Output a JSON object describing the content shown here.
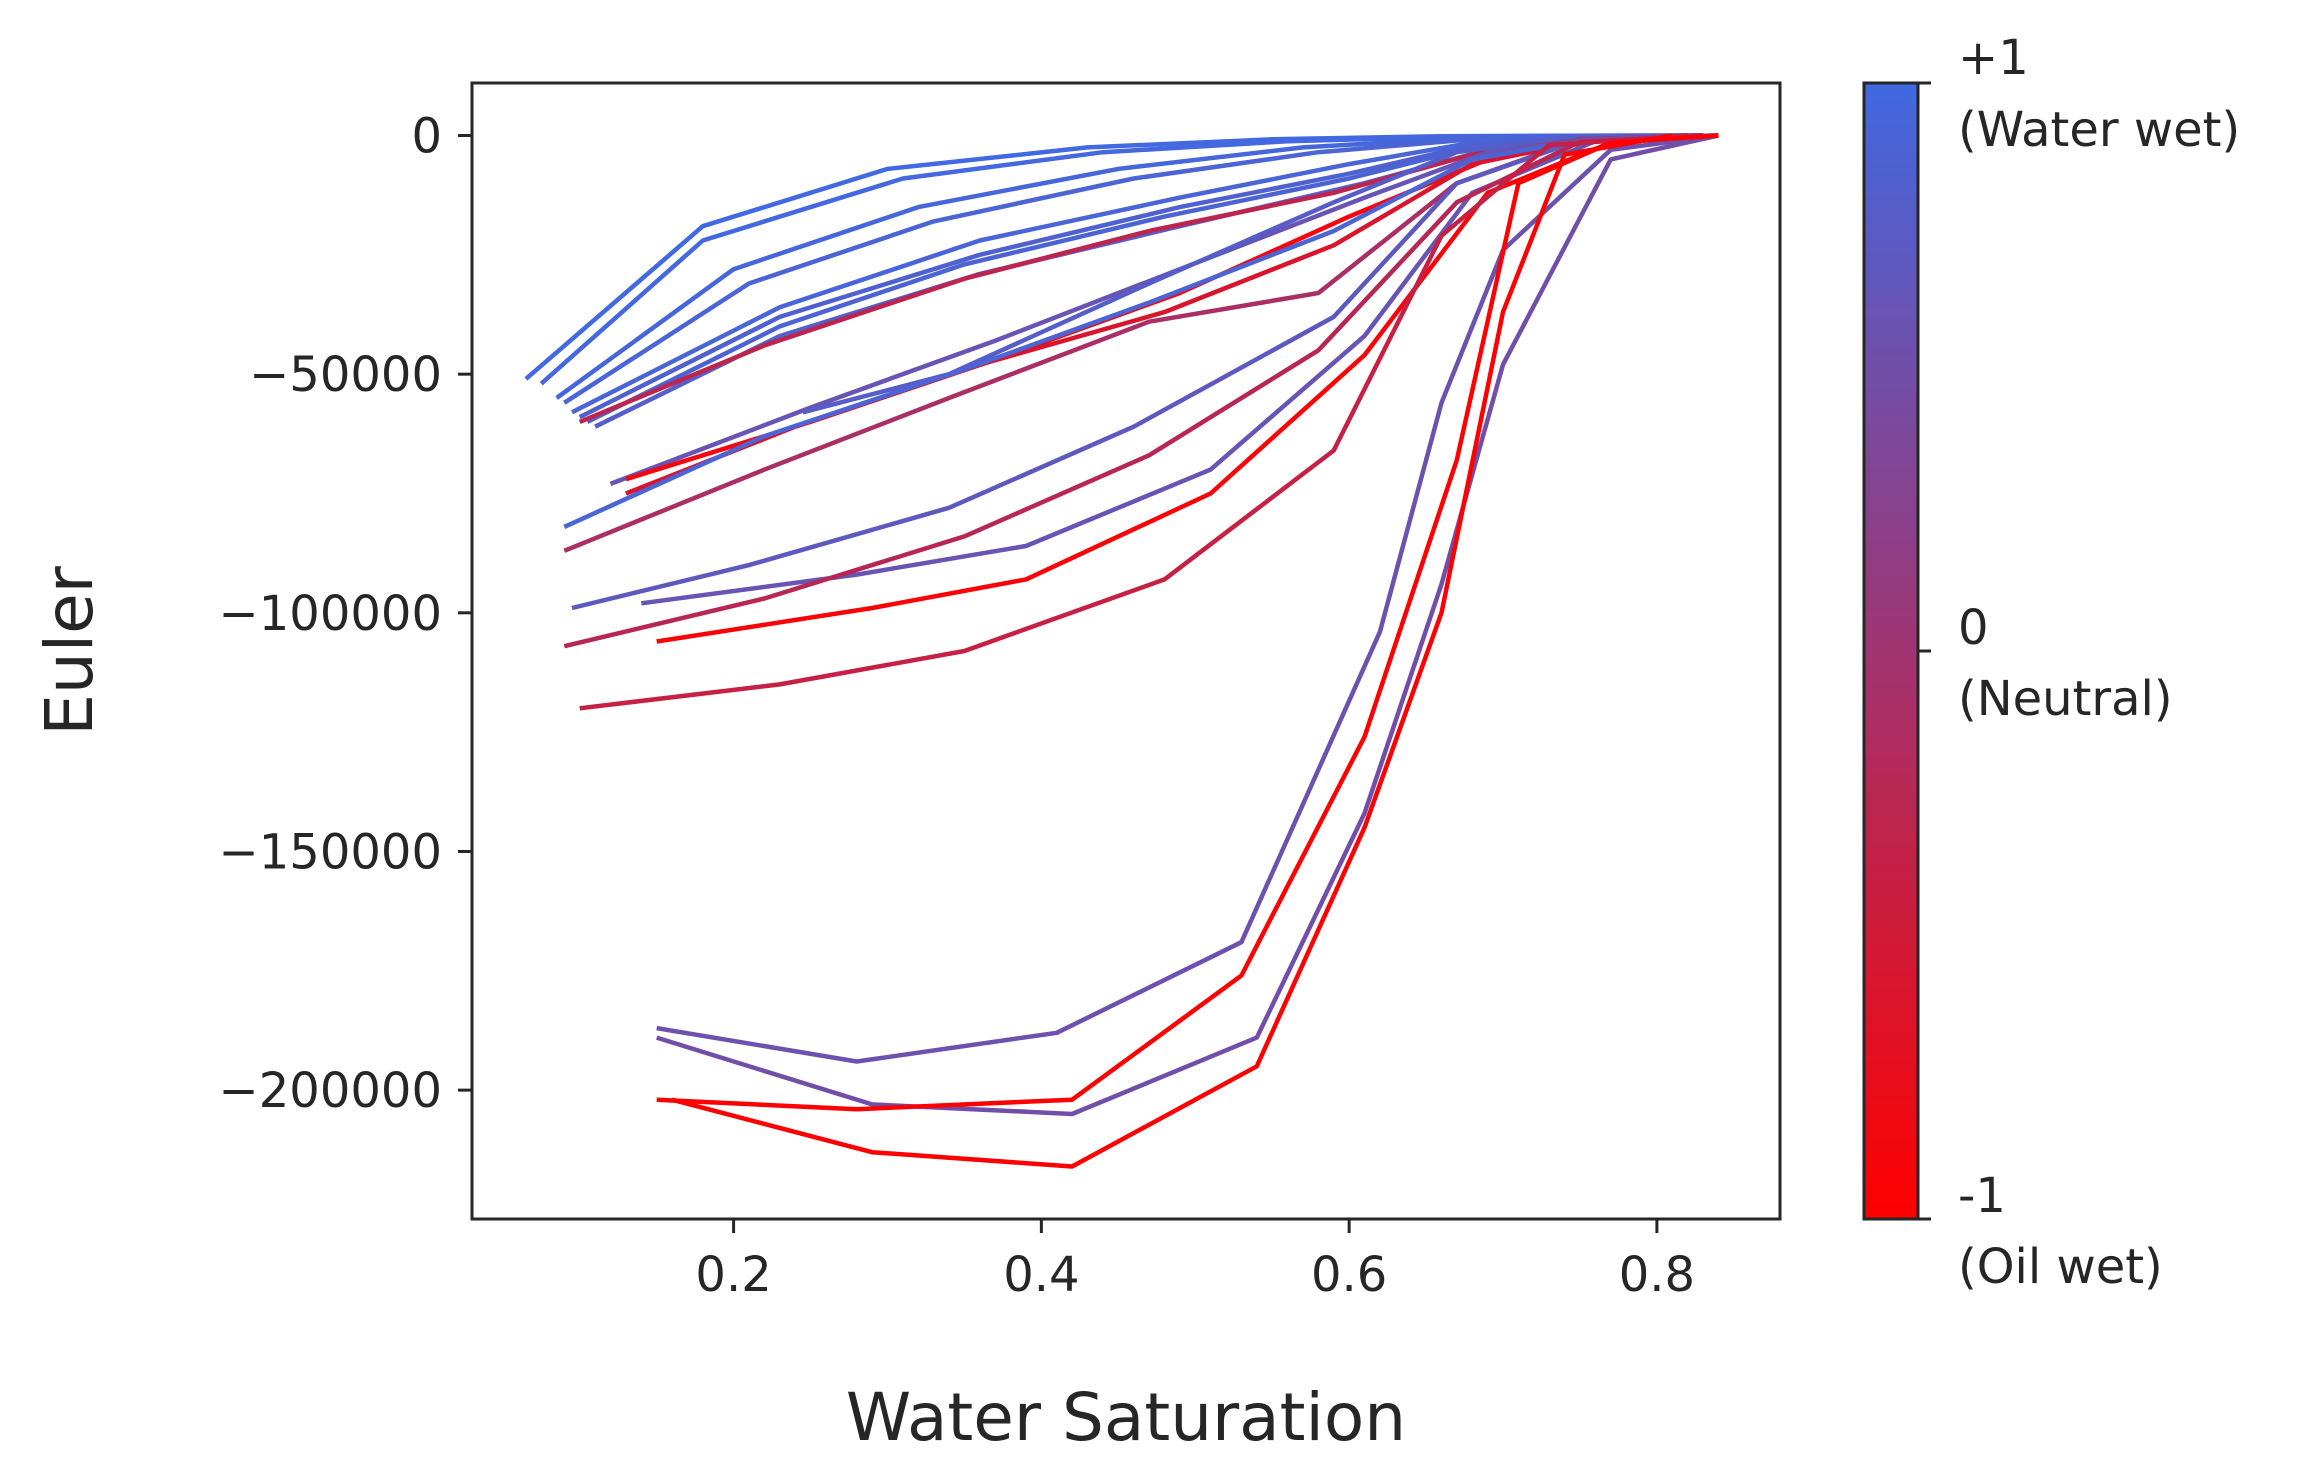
{
  "chart_data": {
    "type": "line",
    "title": "",
    "xlabel": "Water Saturation",
    "ylabel": "Euler",
    "xlim": [
      0.03,
      0.88
    ],
    "ylim": [
      -227000,
      11000
    ],
    "xticks": [
      0.2,
      0.4,
      0.6,
      0.8
    ],
    "xtick_labels": [
      "0.2",
      "0.4",
      "0.6",
      "0.8"
    ],
    "yticks": [
      0,
      -50000,
      -100000,
      -150000,
      -200000
    ],
    "ytick_labels": [
      "0",
      "−50000",
      "−100000",
      "−150000",
      "−200000"
    ],
    "grid": false,
    "colorbar": {
      "label_top": "+1",
      "label_top_sub": "(Water wet)",
      "label_mid": "0",
      "label_mid_sub": "(Neutral)",
      "label_bottom": "-1",
      "label_bottom_sub": "(Oil wet)",
      "range": [
        -1,
        1
      ],
      "color_max": "#4169e1",
      "color_min": "#ff0000"
    },
    "series": [
      {
        "wettability": 1.0,
        "x": [
          0.065,
          0.18,
          0.3,
          0.43,
          0.55,
          0.66,
          0.74,
          0.82
        ],
        "y": [
          -51000,
          -19000,
          -7000,
          -2500,
          -800,
          -150,
          -40,
          0
        ]
      },
      {
        "wettability": 0.98,
        "x": [
          0.075,
          0.18,
          0.31,
          0.44,
          0.56,
          0.67,
          0.75,
          0.83
        ],
        "y": [
          -52000,
          -22000,
          -9000,
          -3500,
          -1200,
          -250,
          -50,
          0
        ]
      },
      {
        "wettability": 0.95,
        "x": [
          0.085,
          0.2,
          0.32,
          0.45,
          0.57,
          0.67,
          0.75,
          0.83
        ],
        "y": [
          -55000,
          -28000,
          -15000,
          -7000,
          -2500,
          -600,
          -100,
          0
        ]
      },
      {
        "wettability": 0.9,
        "x": [
          0.09,
          0.21,
          0.33,
          0.46,
          0.58,
          0.68,
          0.76,
          0.83
        ],
        "y": [
          -56000,
          -31000,
          -18000,
          -9000,
          -3500,
          -800,
          -150,
          0
        ]
      },
      {
        "wettability": 0.92,
        "x": [
          0.095,
          0.23,
          0.36,
          0.49,
          0.6,
          0.68,
          0.76,
          0.83
        ],
        "y": [
          -58000,
          -36000,
          -22000,
          -13000,
          -6000,
          -1500,
          -200,
          0
        ]
      },
      {
        "wettability": 0.85,
        "x": [
          0.1,
          0.23,
          0.36,
          0.49,
          0.6,
          0.68,
          0.76,
          0.83
        ],
        "y": [
          -59000,
          -38000,
          -25000,
          -15000,
          -8000,
          -2000,
          -300,
          0
        ]
      },
      {
        "wettability": 0.88,
        "x": [
          0.105,
          0.23,
          0.35,
          0.48,
          0.6,
          0.68,
          0.76,
          0.83
        ],
        "y": [
          -60000,
          -40000,
          -27000,
          -17000,
          -9000,
          -2500,
          -300,
          0
        ]
      },
      {
        "wettability": 0.8,
        "x": [
          0.11,
          0.23,
          0.36,
          0.49,
          0.61,
          0.69,
          0.77,
          0.84
        ],
        "y": [
          -61000,
          -42000,
          -29000,
          -19000,
          -10000,
          -3000,
          -400,
          0
        ]
      },
      {
        "wettability": -0.3,
        "x": [
          0.1,
          0.22,
          0.35,
          0.47,
          0.59,
          0.68,
          0.76,
          0.83
        ],
        "y": [
          -60000,
          -44000,
          -30000,
          -20000,
          -12000,
          -4000,
          -500,
          0
        ]
      },
      {
        "wettability": 0.6,
        "x": [
          0.12,
          0.25,
          0.37,
          0.49,
          0.61,
          0.69,
          0.77,
          0.84
        ],
        "y": [
          -73000,
          -57000,
          -43000,
          -28000,
          -13000,
          -3500,
          -400,
          0
        ]
      },
      {
        "wettability": 0.78,
        "x": [
          0.245,
          0.34,
          0.47,
          0.59,
          0.67,
          0.74,
          0.82
        ],
        "y": [
          -58000,
          -50000,
          -31000,
          -14000,
          -3500,
          -400,
          0
        ]
      },
      {
        "wettability": -0.9,
        "x": [
          0.13,
          0.25,
          0.37,
          0.49,
          0.6,
          0.69,
          0.77,
          0.84
        ],
        "y": [
          -72000,
          -60000,
          -47000,
          -33000,
          -17000,
          -5000,
          -600,
          0
        ]
      },
      {
        "wettability": -0.6,
        "x": [
          0.13,
          0.24,
          0.36,
          0.48,
          0.59,
          0.68,
          0.76,
          0.83
        ],
        "y": [
          -75000,
          -61000,
          -48000,
          -37000,
          -23000,
          -6000,
          -700,
          0
        ]
      },
      {
        "wettability": 0.9,
        "x": [
          0.09,
          0.22,
          0.35,
          0.47,
          0.59,
          0.68,
          0.76,
          0.84
        ],
        "y": [
          -82000,
          -63000,
          -49000,
          -35000,
          -20000,
          -5000,
          -500,
          0
        ]
      },
      {
        "wettability": -0.1,
        "x": [
          0.09,
          0.22,
          0.34,
          0.47,
          0.58,
          0.67,
          0.75,
          0.83
        ],
        "y": [
          -87000,
          -70000,
          -55000,
          -39000,
          -33000,
          -10000,
          -800,
          0
        ]
      },
      {
        "wettability": 0.7,
        "x": [
          0.095,
          0.21,
          0.34,
          0.46,
          0.59,
          0.67,
          0.75,
          0.83
        ],
        "y": [
          -99000,
          -90000,
          -78000,
          -61000,
          -38000,
          -10000,
          -1000,
          0
        ]
      },
      {
        "wettability": 0.6,
        "x": [
          0.14,
          0.28,
          0.39,
          0.51,
          0.61,
          0.68,
          0.76,
          0.84
        ],
        "y": [
          -98000,
          -92000,
          -86000,
          -70000,
          -42000,
          -12000,
          -1200,
          0
        ]
      },
      {
        "wettability": -0.25,
        "x": [
          0.09,
          0.22,
          0.35,
          0.47,
          0.58,
          0.67,
          0.75,
          0.83
        ],
        "y": [
          -107000,
          -97000,
          -84000,
          -67000,
          -45000,
          -14000,
          -1300,
          0
        ]
      },
      {
        "wettability": -0.95,
        "x": [
          0.15,
          0.29,
          0.39,
          0.51,
          0.61,
          0.69,
          0.77,
          0.84
        ],
        "y": [
          -106000,
          -99000,
          -93000,
          -75000,
          -46000,
          -12000,
          -1500,
          0
        ]
      },
      {
        "wettability": -0.4,
        "x": [
          0.1,
          0.23,
          0.35,
          0.48,
          0.59,
          0.66,
          0.73,
          0.82
        ],
        "y": [
          -120000,
          -115000,
          -108000,
          -93000,
          -66000,
          -21000,
          -2000,
          0
        ]
      },
      {
        "wettability": 0.55,
        "x": [
          0.15,
          0.28,
          0.41,
          0.53,
          0.62,
          0.66,
          0.7,
          0.77,
          0.84
        ],
        "y": [
          -187000,
          -194000,
          -188000,
          -169000,
          -104000,
          -56000,
          -24000,
          -3000,
          0
        ]
      },
      {
        "wettability": 0.5,
        "x": [
          0.15,
          0.29,
          0.42,
          0.54,
          0.61,
          0.66,
          0.7,
          0.77,
          0.84
        ],
        "y": [
          -189000,
          -203000,
          -205000,
          -189000,
          -142000,
          -94000,
          -48000,
          -5000,
          0
        ]
      },
      {
        "wettability": -1.0,
        "x": [
          0.15,
          0.28,
          0.42,
          0.53,
          0.61,
          0.67,
          0.71,
          0.77,
          0.84
        ],
        "y": [
          -202000,
          -204000,
          -202000,
          -176000,
          -126000,
          -68000,
          -10000,
          -1500,
          0
        ]
      },
      {
        "wettability": -1.0,
        "x": [
          0.16,
          0.29,
          0.42,
          0.54,
          0.61,
          0.66,
          0.7,
          0.74,
          0.81
        ],
        "y": [
          -202000,
          -213000,
          -216000,
          -195000,
          -145000,
          -100000,
          -37000,
          -4000,
          0
        ]
      }
    ]
  }
}
